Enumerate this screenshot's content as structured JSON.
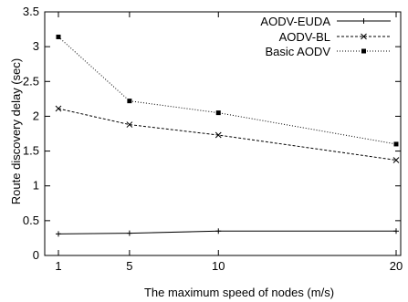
{
  "chart_data": {
    "type": "line",
    "title": "",
    "xlabel": "The maximum speed of nodes (m/s)",
    "ylabel": "Route discovery delay (sec)",
    "x": [
      1,
      5,
      10,
      20
    ],
    "x_ticks": [
      "1",
      "5",
      "10",
      "20"
    ],
    "xlim": [
      1,
      20
    ],
    "ylim": [
      0,
      3.5
    ],
    "y_ticks": [
      "0",
      "0.5",
      "1",
      "1.5",
      "2",
      "2.5",
      "3",
      "3.5"
    ],
    "grid": false,
    "legend_position": "top-right",
    "series": [
      {
        "name": "AODV-EUDA",
        "values": [
          0.31,
          0.32,
          0.35,
          0.35
        ],
        "style": "solid",
        "marker": "plus",
        "color": "#000000"
      },
      {
        "name": "AODV-BL",
        "values": [
          2.11,
          1.88,
          1.73,
          1.37
        ],
        "style": "dashed",
        "marker": "x",
        "color": "#000000"
      },
      {
        "name": "Basic AODV",
        "values": [
          3.14,
          2.22,
          2.05,
          1.6
        ],
        "style": "dotted",
        "marker": "square",
        "color": "#000000"
      }
    ]
  }
}
